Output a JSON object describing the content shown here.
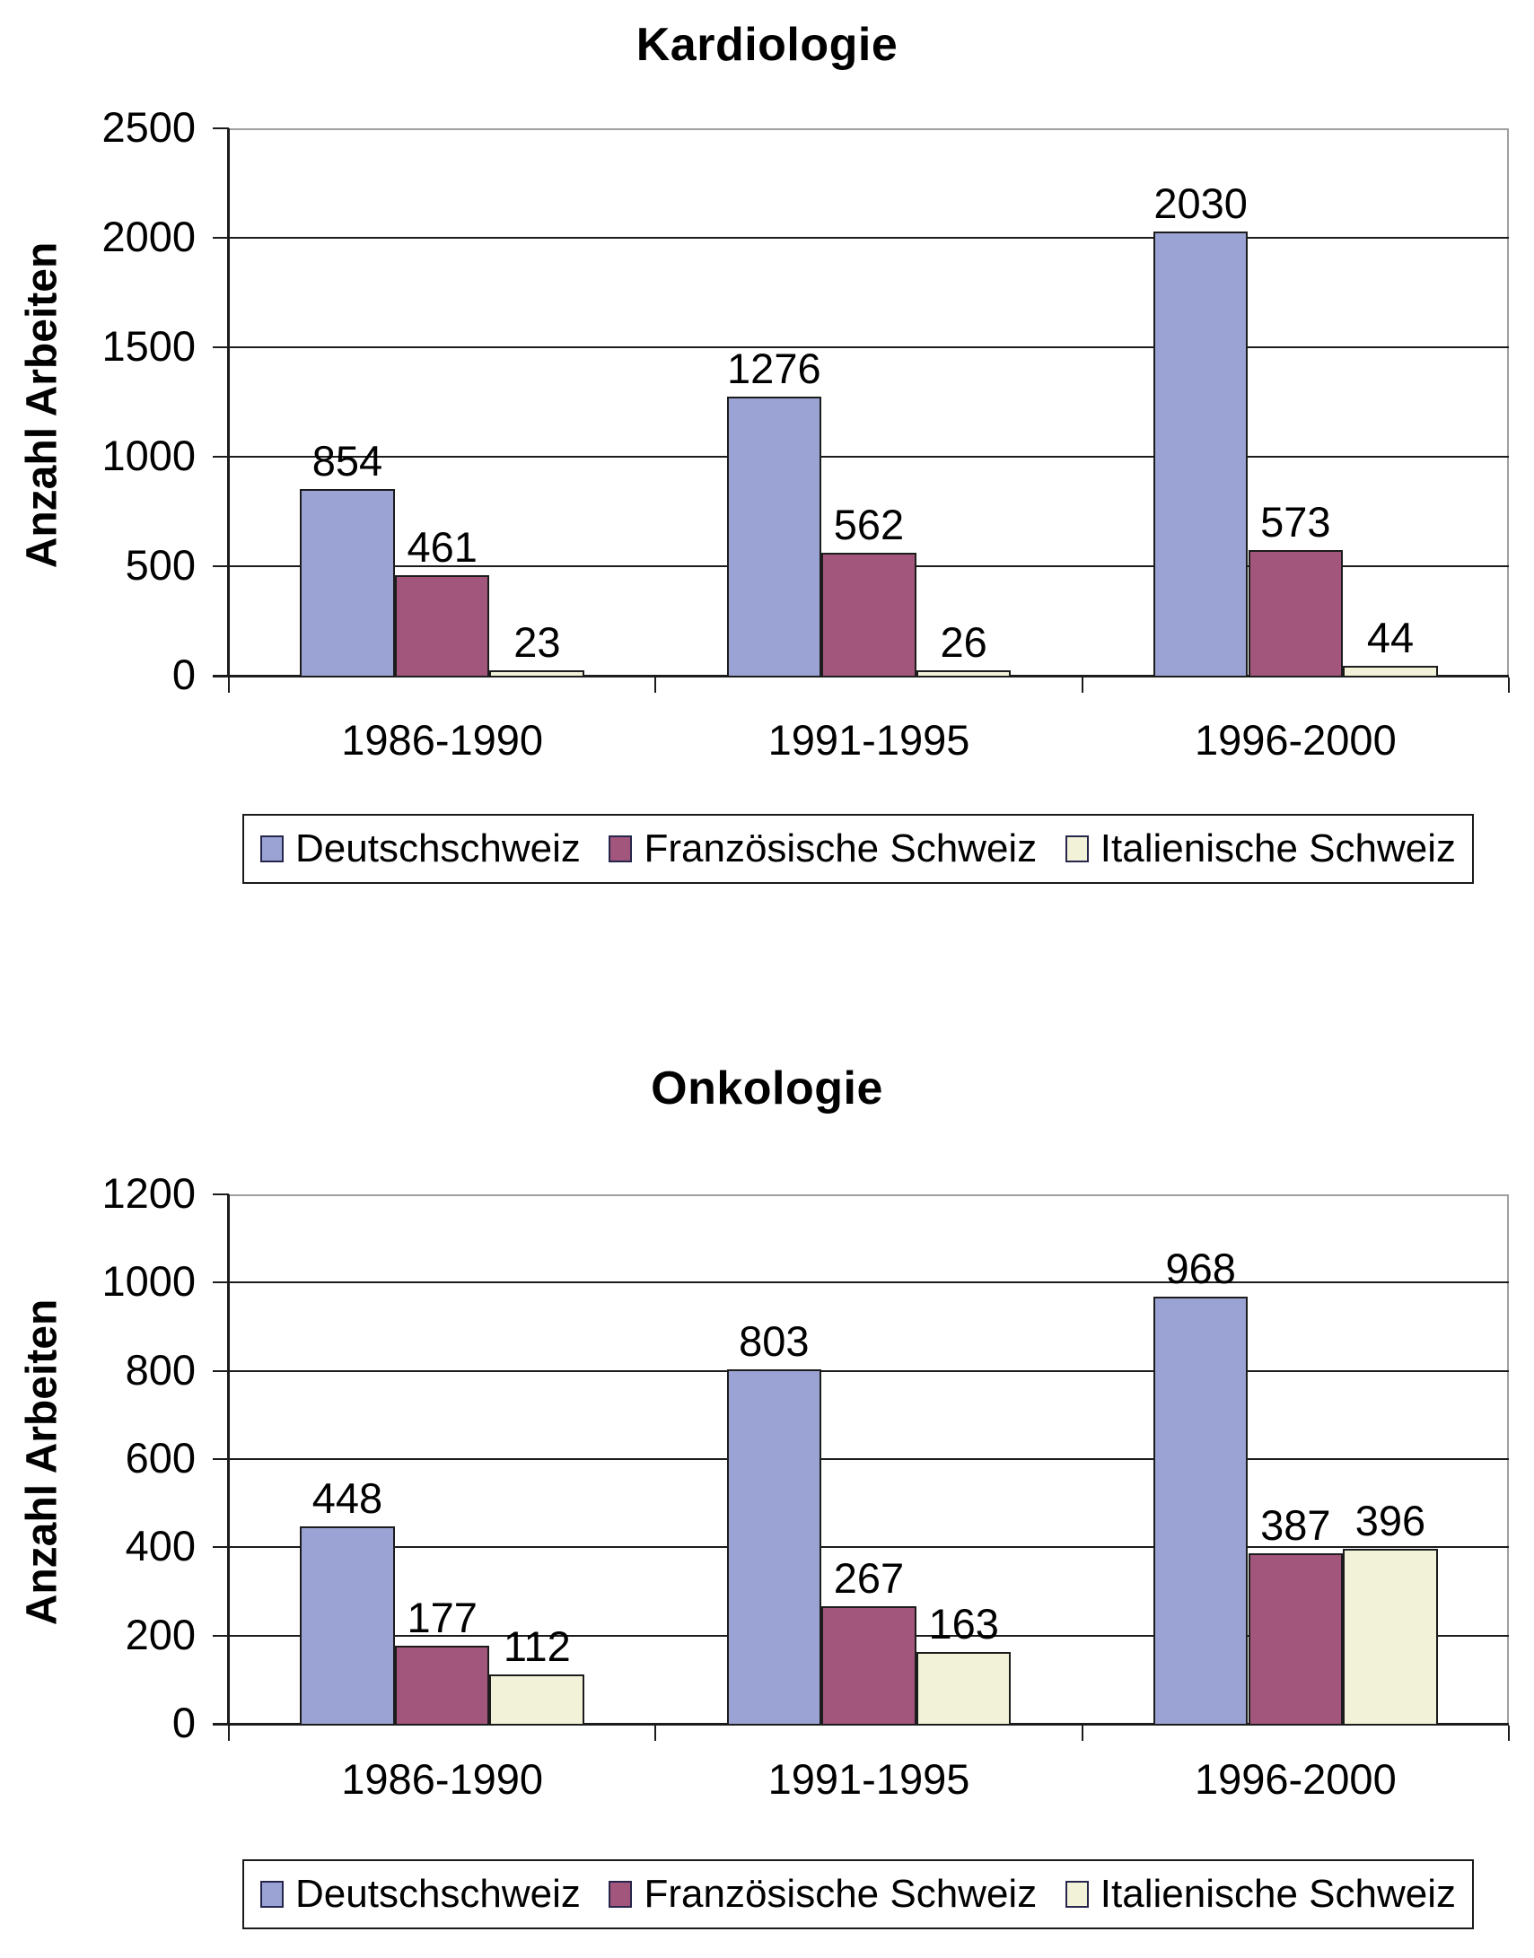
{
  "colors": {
    "series": [
      "#9AA3D3",
      "#A3567B",
      "#F2F2D8"
    ],
    "bar_border": "#1c1c1c",
    "gridline": "#1c1c1c",
    "axis": "#1c1c1c",
    "plot_border": "#A0A0A0",
    "text": "#000000",
    "background": "#ffffff"
  },
  "legend": {
    "position": "bottom",
    "items": [
      "Deutschschweiz",
      "Französische Schweiz",
      "Italienische Schweiz"
    ]
  },
  "chart_data": [
    {
      "type": "bar",
      "title": "Kardiologie",
      "ylabel": "Anzahl Arbeiten",
      "xlabel": "",
      "categories": [
        "1986-1990",
        "1991-1995",
        "1996-2000"
      ],
      "series": [
        {
          "name": "Deutschschweiz",
          "values": [
            854,
            1276,
            2030
          ]
        },
        {
          "name": "Französische Schweiz",
          "values": [
            461,
            562,
            573
          ]
        },
        {
          "name": "Italienische Schweiz",
          "values": [
            23,
            26,
            44
          ]
        }
      ],
      "ylim": [
        0,
        2500
      ],
      "ytick_step": 500,
      "ytick_labels": [
        "0",
        "500",
        "1000",
        "1500",
        "2000",
        "2500"
      ],
      "grid": true,
      "data_labels": true,
      "legend_position": "bottom"
    },
    {
      "type": "bar",
      "title": "Onkologie",
      "ylabel": "Anzahl Arbeiten",
      "xlabel": "",
      "categories": [
        "1986-1990",
        "1991-1995",
        "1996-2000"
      ],
      "series": [
        {
          "name": "Deutschschweiz",
          "values": [
            448,
            803,
            968
          ]
        },
        {
          "name": "Französische Schweiz",
          "values": [
            177,
            267,
            387
          ]
        },
        {
          "name": "Italienische Schweiz",
          "values": [
            112,
            163,
            396
          ]
        }
      ],
      "ylim": [
        0,
        1200
      ],
      "ytick_step": 200,
      "ytick_labels": [
        "0",
        "200",
        "400",
        "600",
        "800",
        "1000",
        "1200"
      ],
      "grid": true,
      "data_labels": true,
      "legend_position": "bottom"
    }
  ]
}
